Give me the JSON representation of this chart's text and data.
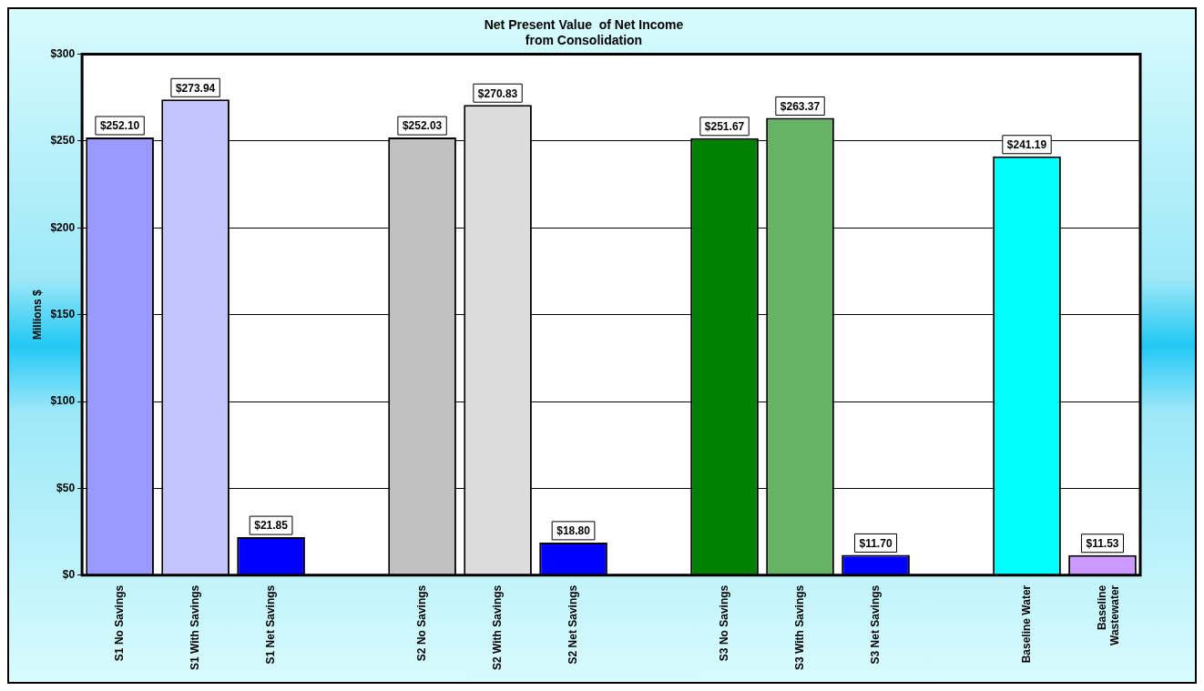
{
  "chart_data": {
    "type": "bar",
    "title": [
      "Net Present Value  of Net Income",
      "from Consolidation"
    ],
    "ylabel": "Millions $",
    "categories": [
      "S1 No Savings",
      "S1 With Savings",
      "S1 Net Savings",
      null,
      "S2 No Savings",
      "S2 With Savings",
      "S2 Net Savings",
      null,
      "S3 No Savings",
      "S3 With Savings",
      "S3 Net Savings",
      null,
      "Baseline Water",
      "Baseline Wastewater"
    ],
    "values": [
      252.1,
      273.94,
      21.85,
      null,
      252.03,
      270.83,
      18.8,
      null,
      251.67,
      263.37,
      11.7,
      null,
      241.19,
      11.53
    ],
    "colors": [
      "#9999ff",
      "#c4c4ff",
      "#0000ff",
      "#ffffff",
      "#c0c0c0",
      "#dcdcdc",
      "#0000ff",
      "#ffffff",
      "#008000",
      "#66b366",
      "#0000ff",
      "#ffffff",
      "#00ffff",
      "#cc99ff"
    ],
    "value_labels": [
      "$252.10",
      "$273.94",
      "$21.85",
      null,
      "$252.03",
      "$270.83",
      "$18.80",
      null,
      "$251.67",
      "$263.37",
      "$11.70",
      null,
      "$241.19",
      "$11.53"
    ],
    "ylim": [
      0,
      300
    ],
    "yticks": [
      {
        "value": 0,
        "label": "$0"
      },
      {
        "value": 50,
        "label": "$50"
      },
      {
        "value": 100,
        "label": "$100"
      },
      {
        "value": 150,
        "label": "$150"
      },
      {
        "value": 200,
        "label": "$200"
      },
      {
        "value": 250,
        "label": "$250"
      },
      {
        "value": 300,
        "label": "$300"
      }
    ],
    "grid": "y",
    "legend": false
  }
}
